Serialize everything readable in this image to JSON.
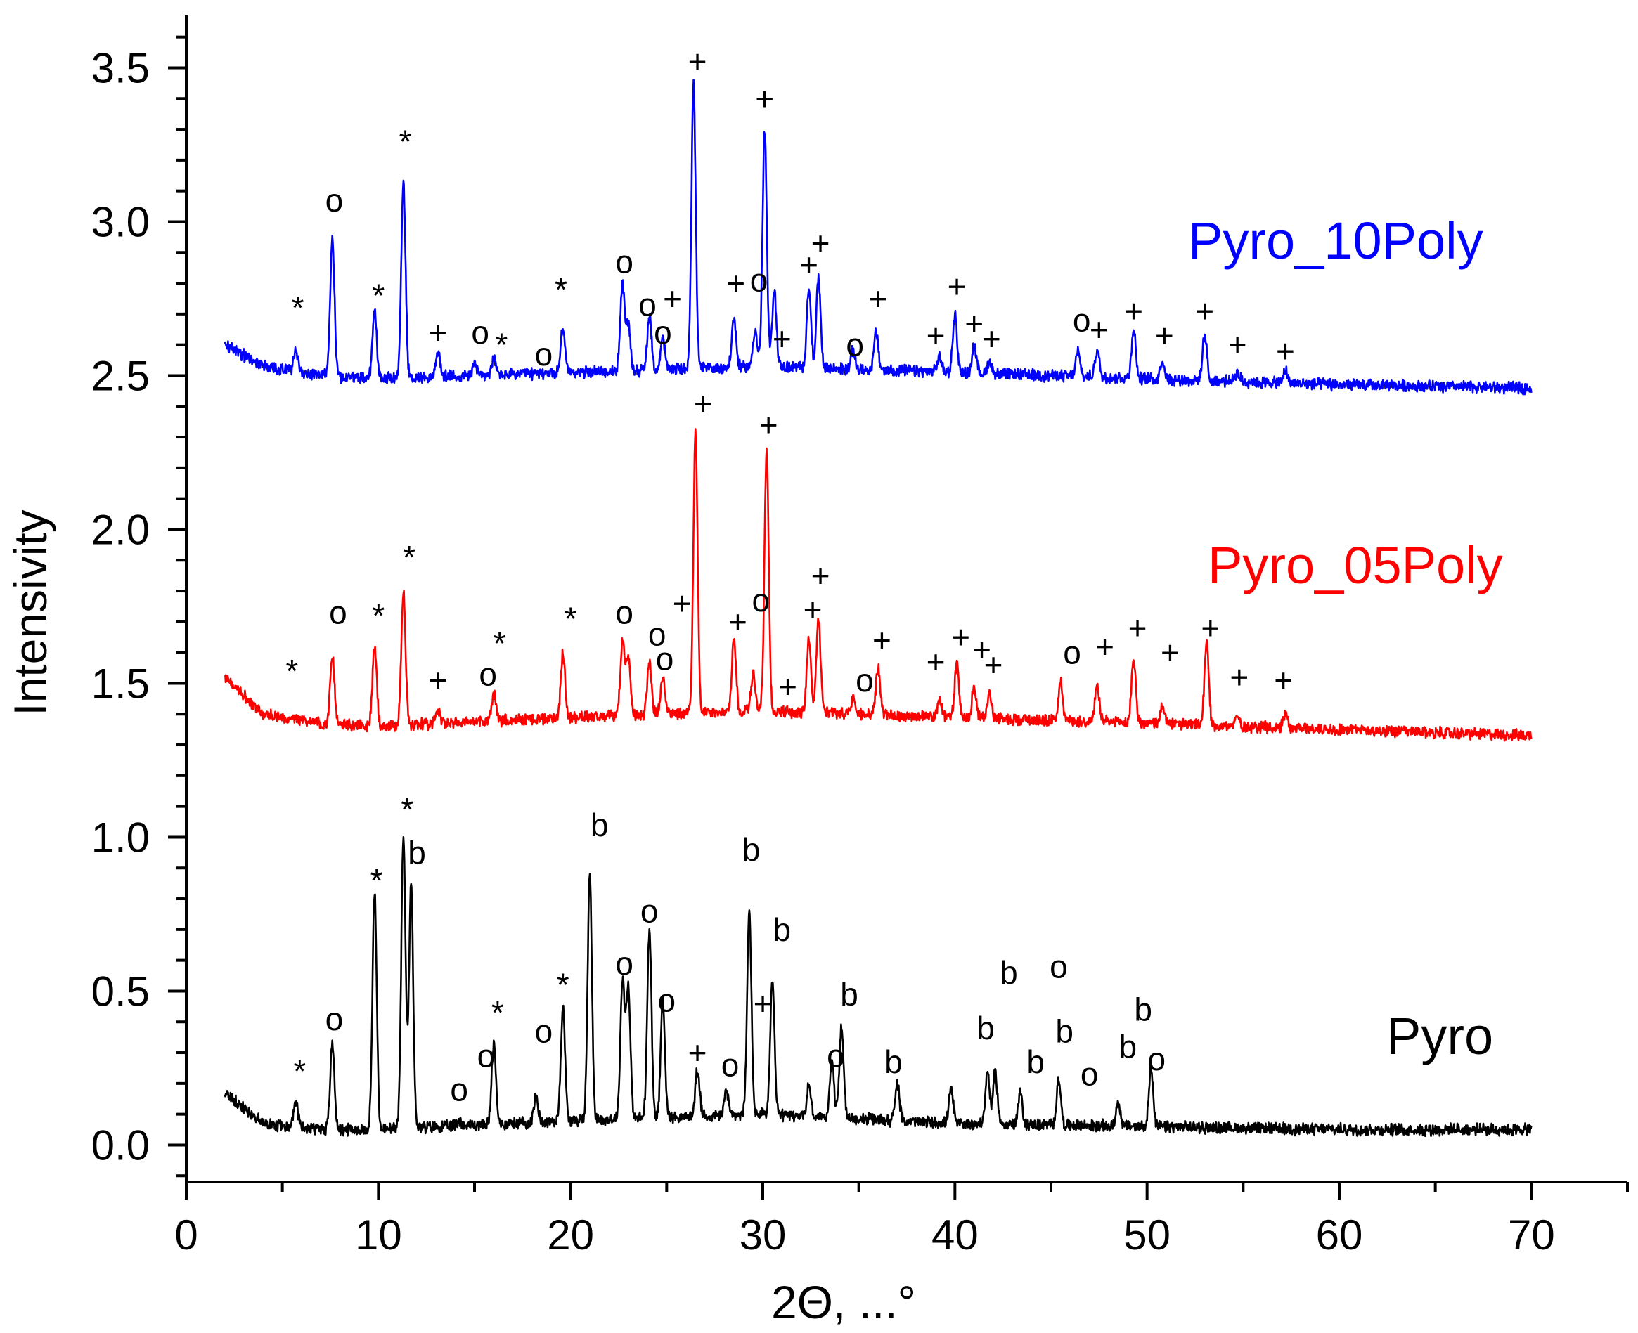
{
  "chart_data": {
    "type": "line",
    "xlabel": "2Θ, ...°",
    "ylabel": "Intensivity",
    "xlim": [
      0,
      75
    ],
    "ylim": [
      -0.12,
      3.67
    ],
    "xticks": [
      0,
      10,
      20,
      30,
      40,
      50,
      60,
      70
    ],
    "xtick_labels": [
      "0",
      "10",
      "20",
      "30",
      "40",
      "50",
      "60",
      "70"
    ],
    "yticks": [
      0.0,
      0.5,
      1.0,
      1.5,
      2.0,
      2.5,
      3.0,
      3.5
    ],
    "ytick_labels": [
      "0.0",
      "0.5",
      "1.0",
      "1.5",
      "2.0",
      "2.5",
      "3.0",
      "3.5"
    ],
    "grid": false,
    "x_range": [
      2,
      70
    ],
    "series": [
      {
        "name": "Pyro",
        "label": "Pyro",
        "color": "#000000",
        "baseline": [
          [
            2,
            0.17
          ],
          [
            4,
            0.07
          ],
          [
            7,
            0.05
          ],
          [
            10,
            0.05
          ],
          [
            20,
            0.08
          ],
          [
            30,
            0.1
          ],
          [
            40,
            0.07
          ],
          [
            50,
            0.06
          ],
          [
            60,
            0.05
          ],
          [
            70,
            0.05
          ]
        ],
        "peaks": [
          [
            5.7,
            0.08
          ],
          [
            7.6,
            0.28
          ],
          [
            9.8,
            0.77
          ],
          [
            11.3,
            0.95
          ],
          [
            11.7,
            0.79
          ],
          [
            14.2,
            0.02
          ],
          [
            16.0,
            0.26
          ],
          [
            18.2,
            0.08
          ],
          [
            19.6,
            0.37
          ],
          [
            21.0,
            0.8
          ],
          [
            22.7,
            0.45
          ],
          [
            23.0,
            0.43
          ],
          [
            24.1,
            0.61
          ],
          [
            24.8,
            0.38
          ],
          [
            26.6,
            0.15
          ],
          [
            28.1,
            0.08
          ],
          [
            29.3,
            0.66
          ],
          [
            30.5,
            0.43
          ],
          [
            32.4,
            0.1
          ],
          [
            33.6,
            0.18
          ],
          [
            34.1,
            0.3
          ],
          [
            37.0,
            0.12
          ],
          [
            39.8,
            0.11
          ],
          [
            41.7,
            0.17
          ],
          [
            42.1,
            0.17
          ],
          [
            43.4,
            0.1
          ],
          [
            45.4,
            0.15
          ],
          [
            48.5,
            0.08
          ],
          [
            50.2,
            0.19
          ]
        ],
        "markers": [
          {
            "t": "*",
            "x": 5.9,
            "y": 0.24
          },
          {
            "t": "o",
            "x": 7.7,
            "y": 0.41
          },
          {
            "t": "*",
            "x": 9.9,
            "y": 0.86
          },
          {
            "t": "*",
            "x": 11.5,
            "y": 1.09
          },
          {
            "t": "b",
            "x": 12.0,
            "y": 0.95
          },
          {
            "t": "o",
            "x": 14.2,
            "y": 0.18
          },
          {
            "t": "o",
            "x": 15.6,
            "y": 0.29
          },
          {
            "t": "*",
            "x": 16.2,
            "y": 0.43
          },
          {
            "t": "o",
            "x": 18.6,
            "y": 0.37
          },
          {
            "t": "*",
            "x": 19.6,
            "y": 0.52
          },
          {
            "t": "b",
            "x": 21.5,
            "y": 1.04
          },
          {
            "t": "o",
            "x": 22.8,
            "y": 0.59
          },
          {
            "t": "o",
            "x": 24.1,
            "y": 0.76
          },
          {
            "t": "o",
            "x": 25.0,
            "y": 0.47
          },
          {
            "t": "+",
            "x": 26.6,
            "y": 0.3
          },
          {
            "t": "o",
            "x": 28.3,
            "y": 0.26
          },
          {
            "t": "b",
            "x": 29.4,
            "y": 0.96
          },
          {
            "t": "+",
            "x": 30.0,
            "y": 0.46
          },
          {
            "t": "b",
            "x": 31.0,
            "y": 0.7
          },
          {
            "t": "o",
            "x": 33.8,
            "y": 0.29
          },
          {
            "t": "b",
            "x": 34.5,
            "y": 0.49
          },
          {
            "t": "b",
            "x": 36.8,
            "y": 0.27
          },
          {
            "t": "b",
            "x": 41.6,
            "y": 0.38
          },
          {
            "t": "b",
            "x": 42.8,
            "y": 0.56
          },
          {
            "t": "b",
            "x": 44.2,
            "y": 0.27
          },
          {
            "t": "o",
            "x": 45.4,
            "y": 0.58
          },
          {
            "t": "b",
            "x": 45.7,
            "y": 0.37
          },
          {
            "t": "o",
            "x": 47.0,
            "y": 0.23
          },
          {
            "t": "b",
            "x": 49.0,
            "y": 0.32
          },
          {
            "t": "b",
            "x": 49.8,
            "y": 0.44
          },
          {
            "t": "o",
            "x": 50.5,
            "y": 0.28
          }
        ]
      },
      {
        "name": "Pyro_05Poly",
        "label": "Pyro_05Poly",
        "color": "#ff0000",
        "baseline": [
          [
            2,
            1.52
          ],
          [
            4,
            1.4
          ],
          [
            7,
            1.37
          ],
          [
            10,
            1.36
          ],
          [
            20,
            1.39
          ],
          [
            30,
            1.41
          ],
          [
            40,
            1.39
          ],
          [
            50,
            1.37
          ],
          [
            60,
            1.35
          ],
          [
            70,
            1.33
          ]
        ],
        "peaks": [
          [
            7.6,
            0.22
          ],
          [
            9.8,
            0.26
          ],
          [
            11.3,
            0.43
          ],
          [
            13.1,
            0.05
          ],
          [
            16.0,
            0.09
          ],
          [
            19.6,
            0.21
          ],
          [
            22.7,
            0.24
          ],
          [
            23.0,
            0.18
          ],
          [
            24.1,
            0.17
          ],
          [
            24.8,
            0.12
          ],
          [
            26.5,
            0.91
          ],
          [
            28.5,
            0.24
          ],
          [
            29.5,
            0.12
          ],
          [
            30.2,
            0.84
          ],
          [
            32.4,
            0.24
          ],
          [
            32.9,
            0.3
          ],
          [
            34.7,
            0.05
          ],
          [
            36.0,
            0.15
          ],
          [
            39.2,
            0.05
          ],
          [
            40.1,
            0.17
          ],
          [
            41.0,
            0.1
          ],
          [
            41.8,
            0.08
          ],
          [
            45.5,
            0.13
          ],
          [
            47.4,
            0.12
          ],
          [
            49.3,
            0.21
          ],
          [
            50.8,
            0.06
          ],
          [
            53.1,
            0.27
          ],
          [
            54.7,
            0.03
          ],
          [
            57.2,
            0.05
          ]
        ],
        "markers": [
          {
            "t": "*",
            "x": 5.5,
            "y": 1.54
          },
          {
            "t": "o",
            "x": 7.9,
            "y": 1.73
          },
          {
            "t": "*",
            "x": 10.0,
            "y": 1.72
          },
          {
            "t": "*",
            "x": 11.6,
            "y": 1.91
          },
          {
            "t": "+",
            "x": 13.1,
            "y": 1.51
          },
          {
            "t": "o",
            "x": 15.7,
            "y": 1.53
          },
          {
            "t": "*",
            "x": 16.3,
            "y": 1.63
          },
          {
            "t": "*",
            "x": 20.0,
            "y": 1.71
          },
          {
            "t": "o",
            "x": 22.8,
            "y": 1.73
          },
          {
            "t": "o",
            "x": 24.5,
            "y": 1.66
          },
          {
            "t": "o",
            "x": 24.9,
            "y": 1.58
          },
          {
            "t": "+",
            "x": 25.8,
            "y": 1.76
          },
          {
            "t": "+",
            "x": 26.9,
            "y": 2.41
          },
          {
            "t": "+",
            "x": 28.7,
            "y": 1.7
          },
          {
            "t": "o",
            "x": 29.9,
            "y": 1.77
          },
          {
            "t": "+",
            "x": 30.3,
            "y": 2.34
          },
          {
            "t": "+",
            "x": 31.3,
            "y": 1.49
          },
          {
            "t": "+",
            "x": 32.6,
            "y": 1.74
          },
          {
            "t": "+",
            "x": 33.0,
            "y": 1.85
          },
          {
            "t": "o",
            "x": 35.3,
            "y": 1.51
          },
          {
            "t": "+",
            "x": 36.2,
            "y": 1.64
          },
          {
            "t": "+",
            "x": 39.0,
            "y": 1.57
          },
          {
            "t": "+",
            "x": 40.3,
            "y": 1.65
          },
          {
            "t": "+",
            "x": 41.4,
            "y": 1.61
          },
          {
            "t": "+",
            "x": 42.0,
            "y": 1.56
          },
          {
            "t": "o",
            "x": 46.1,
            "y": 1.6
          },
          {
            "t": "+",
            "x": 47.8,
            "y": 1.62
          },
          {
            "t": "+",
            "x": 49.5,
            "y": 1.68
          },
          {
            "t": "+",
            "x": 51.2,
            "y": 1.6
          },
          {
            "t": "+",
            "x": 53.3,
            "y": 1.68
          },
          {
            "t": "+",
            "x": 54.8,
            "y": 1.52
          },
          {
            "t": "+",
            "x": 57.1,
            "y": 1.51
          }
        ]
      },
      {
        "name": "Pyro_10Poly",
        "label": "Pyro_10Poly",
        "color": "#0000ff",
        "baseline": [
          [
            2,
            2.6
          ],
          [
            4,
            2.53
          ],
          [
            7,
            2.5
          ],
          [
            10,
            2.49
          ],
          [
            20,
            2.51
          ],
          [
            30,
            2.53
          ],
          [
            40,
            2.51
          ],
          [
            50,
            2.49
          ],
          [
            60,
            2.47
          ],
          [
            70,
            2.46
          ]
        ],
        "peaks": [
          [
            5.7,
            0.07
          ],
          [
            7.6,
            0.45
          ],
          [
            9.8,
            0.22
          ],
          [
            11.3,
            0.64
          ],
          [
            13.1,
            0.08
          ],
          [
            15.0,
            0.04
          ],
          [
            16.0,
            0.05
          ],
          [
            19.6,
            0.15
          ],
          [
            22.7,
            0.28
          ],
          [
            23.0,
            0.15
          ],
          [
            24.1,
            0.17
          ],
          [
            24.8,
            0.1
          ],
          [
            26.4,
            0.92
          ],
          [
            28.5,
            0.16
          ],
          [
            29.6,
            0.12
          ],
          [
            30.1,
            0.77
          ],
          [
            30.6,
            0.25
          ],
          [
            32.4,
            0.26
          ],
          [
            32.9,
            0.29
          ],
          [
            34.7,
            0.06
          ],
          [
            35.9,
            0.12
          ],
          [
            39.2,
            0.05
          ],
          [
            40.0,
            0.19
          ],
          [
            41.0,
            0.09
          ],
          [
            41.8,
            0.04
          ],
          [
            46.4,
            0.08
          ],
          [
            47.4,
            0.09
          ],
          [
            49.3,
            0.16
          ],
          [
            50.8,
            0.06
          ],
          [
            53.0,
            0.15
          ],
          [
            54.7,
            0.03
          ],
          [
            57.2,
            0.04
          ]
        ],
        "markers": [
          {
            "t": "*",
            "x": 5.8,
            "y": 2.72
          },
          {
            "t": "o",
            "x": 7.7,
            "y": 3.07
          },
          {
            "t": "*",
            "x": 10.0,
            "y": 2.76
          },
          {
            "t": "*",
            "x": 11.4,
            "y": 3.26
          },
          {
            "t": "+",
            "x": 13.1,
            "y": 2.64
          },
          {
            "t": "o",
            "x": 15.3,
            "y": 2.64
          },
          {
            "t": "*",
            "x": 16.4,
            "y": 2.6
          },
          {
            "t": "o",
            "x": 18.6,
            "y": 2.57
          },
          {
            "t": "*",
            "x": 19.5,
            "y": 2.78
          },
          {
            "t": "o",
            "x": 22.8,
            "y": 2.87
          },
          {
            "t": "o",
            "x": 24.0,
            "y": 2.73
          },
          {
            "t": "+",
            "x": 25.3,
            "y": 2.75
          },
          {
            "t": "o",
            "x": 24.8,
            "y": 2.64
          },
          {
            "t": "+",
            "x": 26.6,
            "y": 3.52
          },
          {
            "t": "+",
            "x": 28.6,
            "y": 2.8
          },
          {
            "t": "o",
            "x": 29.8,
            "y": 2.81
          },
          {
            "t": "+",
            "x": 30.1,
            "y": 3.4
          },
          {
            "t": "+",
            "x": 31.0,
            "y": 2.62
          },
          {
            "t": "+",
            "x": 32.4,
            "y": 2.86
          },
          {
            "t": "+",
            "x": 33.0,
            "y": 2.93
          },
          {
            "t": "o",
            "x": 34.8,
            "y": 2.6
          },
          {
            "t": "+",
            "x": 36.0,
            "y": 2.75
          },
          {
            "t": "+",
            "x": 39.0,
            "y": 2.63
          },
          {
            "t": "+",
            "x": 40.1,
            "y": 2.79
          },
          {
            "t": "+",
            "x": 41.0,
            "y": 2.67
          },
          {
            "t": "+",
            "x": 41.9,
            "y": 2.62
          },
          {
            "t": "o",
            "x": 46.6,
            "y": 2.68
          },
          {
            "t": "+",
            "x": 47.5,
            "y": 2.65
          },
          {
            "t": "+",
            "x": 49.3,
            "y": 2.71
          },
          {
            "t": "+",
            "x": 50.9,
            "y": 2.63
          },
          {
            "t": "+",
            "x": 53.0,
            "y": 2.71
          },
          {
            "t": "+",
            "x": 54.7,
            "y": 2.6
          },
          {
            "t": "+",
            "x": 57.2,
            "y": 2.58
          }
        ]
      }
    ]
  }
}
